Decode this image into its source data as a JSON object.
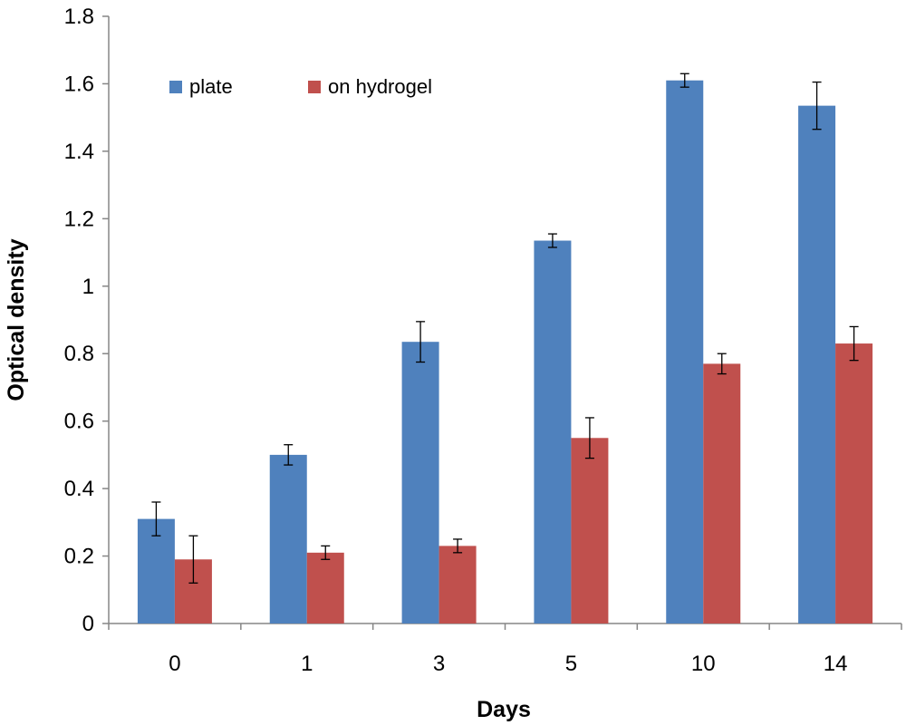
{
  "chart_data": {
    "type": "bar",
    "categories": [
      "0",
      "1",
      "3",
      "5",
      "10",
      "14"
    ],
    "series": [
      {
        "name": "plate",
        "color": "#4F81BD",
        "values": [
          0.31,
          0.5,
          0.835,
          1.135,
          1.61,
          1.535
        ],
        "errors": [
          0.05,
          0.03,
          0.06,
          0.02,
          0.02,
          0.07
        ]
      },
      {
        "name": "on hydrogel",
        "color": "#C0504D",
        "values": [
          0.19,
          0.21,
          0.23,
          0.55,
          0.77,
          0.83
        ],
        "errors": [
          0.07,
          0.02,
          0.02,
          0.06,
          0.03,
          0.05
        ]
      }
    ],
    "xlabel": "Days",
    "ylabel": "Optical density",
    "ylim": [
      0,
      1.8
    ],
    "yticks": [
      "0",
      "0.2",
      "0.4",
      "0.6",
      "0.8",
      "1",
      "1.2",
      "1.4",
      "1.6",
      "1.8"
    ],
    "grid": false,
    "legend_position": "top-left"
  }
}
